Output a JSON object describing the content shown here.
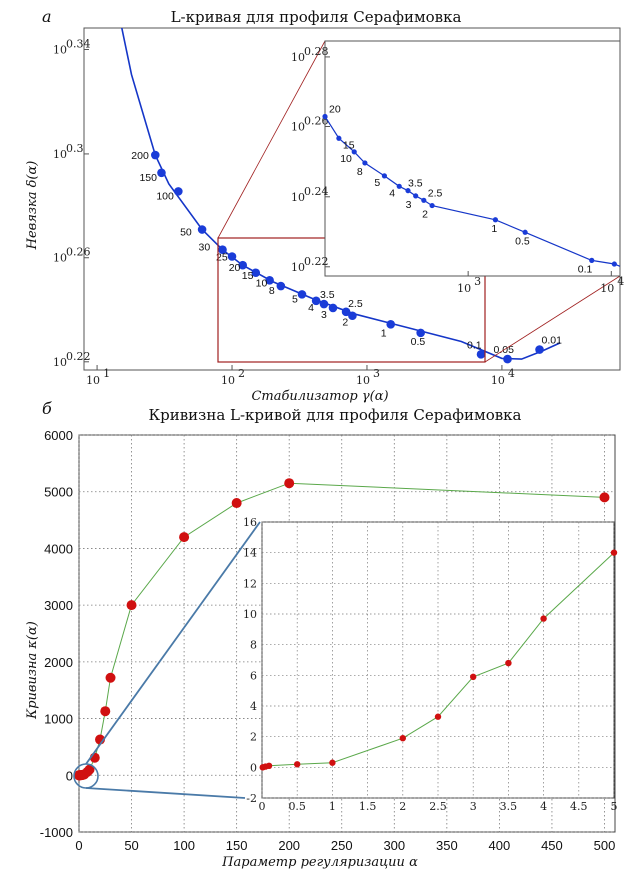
{
  "panel_a": {
    "letter": "а",
    "title": "L-кривая для профиля Серафимовка",
    "xlabel": "Стабилизатор γ(α)",
    "ylabel": "Невязка δ(α)"
  },
  "panel_b": {
    "letter": "б",
    "title": "Кривизна L-кривой для профиля Серафимовка",
    "xlabel": "Параметр регуляризации α",
    "ylabel": "Кривизна κ(α)"
  },
  "chart_data": [
    {
      "id": "a_main",
      "type": "line",
      "xscale": "log",
      "yscale": "log",
      "xlim": [
        8,
        75000
      ],
      "ylim": [
        1.648,
        2.23
      ],
      "xticks": [
        {
          "v": 10,
          "l": "10",
          "e": "1"
        },
        {
          "v": 100,
          "l": "10",
          "e": "2"
        },
        {
          "v": 1000,
          "l": "10",
          "e": "3"
        },
        {
          "v": 10000,
          "l": "10",
          "e": "4"
        }
      ],
      "yticks": [
        {
          "v": 1.66,
          "l": "10",
          "e": "0.22"
        },
        {
          "v": 1.82,
          "l": "10",
          "e": "0.26"
        },
        {
          "v": 1.995,
          "l": "10",
          "e": "0.3"
        },
        {
          "v": 2.188,
          "l": "10",
          "e": "0.34"
        }
      ],
      "line": [
        [
          13,
          2.32
        ],
        [
          18,
          2.14
        ],
        [
          27,
          1.993
        ],
        [
          34,
          1.943
        ],
        [
          60,
          1.866
        ],
        [
          85,
          1.833
        ],
        [
          120,
          1.808
        ],
        [
          200,
          1.782
        ],
        [
          400,
          1.755
        ],
        [
          800,
          1.732
        ],
        [
          2000,
          1.711
        ],
        [
          5000,
          1.69
        ],
        [
          10000,
          1.665
        ],
        [
          14000,
          1.664
        ],
        [
          20000,
          1.676
        ],
        [
          27000,
          1.688
        ]
      ],
      "points": [
        {
          "a": "200",
          "x": 27,
          "y": 1.993
        },
        {
          "a": "150",
          "x": 30,
          "y": 1.962
        },
        {
          "a": "100",
          "x": 40,
          "y": 1.93
        },
        {
          "a": "50",
          "x": 60,
          "y": 1.866
        },
        {
          "a": "30",
          "x": 85,
          "y": 1.833
        },
        {
          "a": "25",
          "x": 100,
          "y": 1.822
        },
        {
          "a": "20",
          "x": 120,
          "y": 1.808
        },
        {
          "a": "15",
          "x": 150,
          "y": 1.796
        },
        {
          "a": "10",
          "x": 190,
          "y": 1.784
        },
        {
          "a": "8",
          "x": 230,
          "y": 1.775
        },
        {
          "a": "5",
          "x": 330,
          "y": 1.762
        },
        {
          "a": "4",
          "x": 420,
          "y": 1.752
        },
        {
          "a": "3.5",
          "x": 480,
          "y": 1.747
        },
        {
          "a": "3",
          "x": 560,
          "y": 1.741
        },
        {
          "a": "2.5",
          "x": 700,
          "y": 1.735
        },
        {
          "a": "2",
          "x": 780,
          "y": 1.729
        },
        {
          "a": "1",
          "x": 1500,
          "y": 1.716
        },
        {
          "a": "0.5",
          "x": 2500,
          "y": 1.703
        },
        {
          "a": "0.1",
          "x": 7000,
          "y": 1.671
        },
        {
          "a": "0.05",
          "x": 11000,
          "y": 1.664
        },
        {
          "a": "0.01",
          "x": 19000,
          "y": 1.678
        }
      ]
    },
    {
      "id": "a_inset",
      "type": "line",
      "xscale": "log",
      "yscale": "log",
      "xlim": [
        100,
        11500
      ],
      "ylim": [
        1.65,
        1.925
      ],
      "xticks": [
        {
          "v": 1000,
          "l": "10",
          "e": "3"
        },
        {
          "v": 10000,
          "l": "10",
          "e": "4"
        }
      ],
      "yticks": [
        {
          "v": 1.66,
          "l": "10",
          "e": "0.22"
        },
        {
          "v": 1.738,
          "l": "10",
          "e": "0.24"
        },
        {
          "v": 1.82,
          "l": "10",
          "e": "0.26"
        },
        {
          "v": 1.905,
          "l": "10",
          "e": "0.28"
        }
      ],
      "points": [
        {
          "a": "20",
          "x": 100,
          "y": 1.832
        },
        {
          "a": "15",
          "x": 125,
          "y": 1.806
        },
        {
          "a": "10",
          "x": 160,
          "y": 1.79
        },
        {
          "a": "8",
          "x": 190,
          "y": 1.777
        },
        {
          "a": "5",
          "x": 260,
          "y": 1.762
        },
        {
          "a": "4",
          "x": 330,
          "y": 1.75
        },
        {
          "a": "3.5",
          "x": 380,
          "y": 1.745
        },
        {
          "a": "3",
          "x": 430,
          "y": 1.739
        },
        {
          "a": "2.5",
          "x": 490,
          "y": 1.734
        },
        {
          "a": "2",
          "x": 560,
          "y": 1.728
        },
        {
          "a": "1",
          "x": 1550,
          "y": 1.712
        },
        {
          "a": "0.5",
          "x": 2500,
          "y": 1.698
        },
        {
          "a": "0.1",
          "x": 7300,
          "y": 1.667
        },
        {
          "a": "",
          "x": 10500,
          "y": 1.663
        }
      ]
    },
    {
      "id": "b_main",
      "type": "line",
      "xlim": [
        0,
        510
      ],
      "ylim": [
        -1000,
        6000
      ],
      "xticks": [
        0,
        50,
        100,
        150,
        200,
        250,
        300,
        350,
        400,
        450,
        500
      ],
      "yticks": [
        -1000,
        0,
        1000,
        2000,
        3000,
        4000,
        5000,
        6000
      ],
      "x": [
        0.01,
        0.05,
        0.1,
        0.5,
        1,
        2,
        2.5,
        3,
        3.5,
        4,
        5,
        8,
        10,
        15,
        20,
        25,
        30,
        50,
        100,
        150,
        200,
        500
      ],
      "y": [
        0,
        0.05,
        0.1,
        0.2,
        0.3,
        1.9,
        3.3,
        5.9,
        6.8,
        9.7,
        14,
        60,
        100,
        310,
        630,
        1130,
        1720,
        3000,
        4200,
        4800,
        5150,
        4900
      ]
    },
    {
      "id": "b_inset",
      "type": "line",
      "xlim": [
        0,
        5
      ],
      "ylim": [
        -2,
        16
      ],
      "xticks": [
        0,
        0.5,
        1,
        1.5,
        2,
        2.5,
        3,
        3.5,
        4,
        4.5,
        5
      ],
      "yticks": [
        -2,
        0,
        2,
        4,
        6,
        8,
        10,
        12,
        14,
        16
      ],
      "x": [
        0.01,
        0.05,
        0.1,
        0.5,
        1,
        2,
        2.5,
        3,
        3.5,
        4,
        5
      ],
      "y": [
        0,
        0.05,
        0.1,
        0.2,
        0.3,
        1.9,
        3.3,
        5.9,
        6.8,
        9.7,
        14
      ]
    }
  ],
  "colors": {
    "point_blue": "#1a3cd8",
    "line_blue": "#1536c8",
    "point_red": "#d01010",
    "curve_green": "#5aa84a",
    "zoom_red": "#a02020",
    "zoom_blue": "#4a7aa8",
    "grid": "#7a7a7a"
  }
}
